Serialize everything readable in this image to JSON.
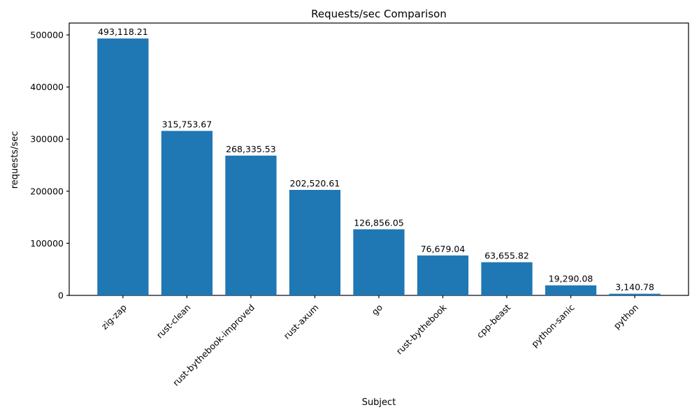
{
  "chart_data": {
    "type": "bar",
    "title": "Requests/sec Comparison",
    "xlabel": "Subject",
    "ylabel": "requests/sec",
    "categories": [
      "zig-zap",
      "rust-clean",
      "rust-bythebook-improved",
      "rust-axum",
      "go",
      "rust-bythebook",
      "cpp-beast",
      "python-sanic",
      "python"
    ],
    "values": [
      493118.21,
      315753.67,
      268335.53,
      202520.61,
      126856.05,
      76679.04,
      63655.82,
      19290.08,
      3140.78
    ],
    "value_labels": [
      "493,118.21",
      "315,753.67",
      "268,335.53",
      "202,520.61",
      "126,856.05",
      "76,679.04",
      "63,655.82",
      "19,290.08",
      "3,140.78"
    ],
    "yticks": [
      0,
      100000,
      200000,
      300000,
      400000,
      500000
    ],
    "ytick_labels": [
      "0",
      "100000",
      "200000",
      "300000",
      "400000",
      "500000"
    ],
    "ylim": [
      0,
      521700
    ],
    "xtick_rotation_deg": 45,
    "bar_color": "#1f77b4",
    "axis_color": "#000000",
    "background_color": "#ffffff",
    "grid": false,
    "legend": null
  }
}
